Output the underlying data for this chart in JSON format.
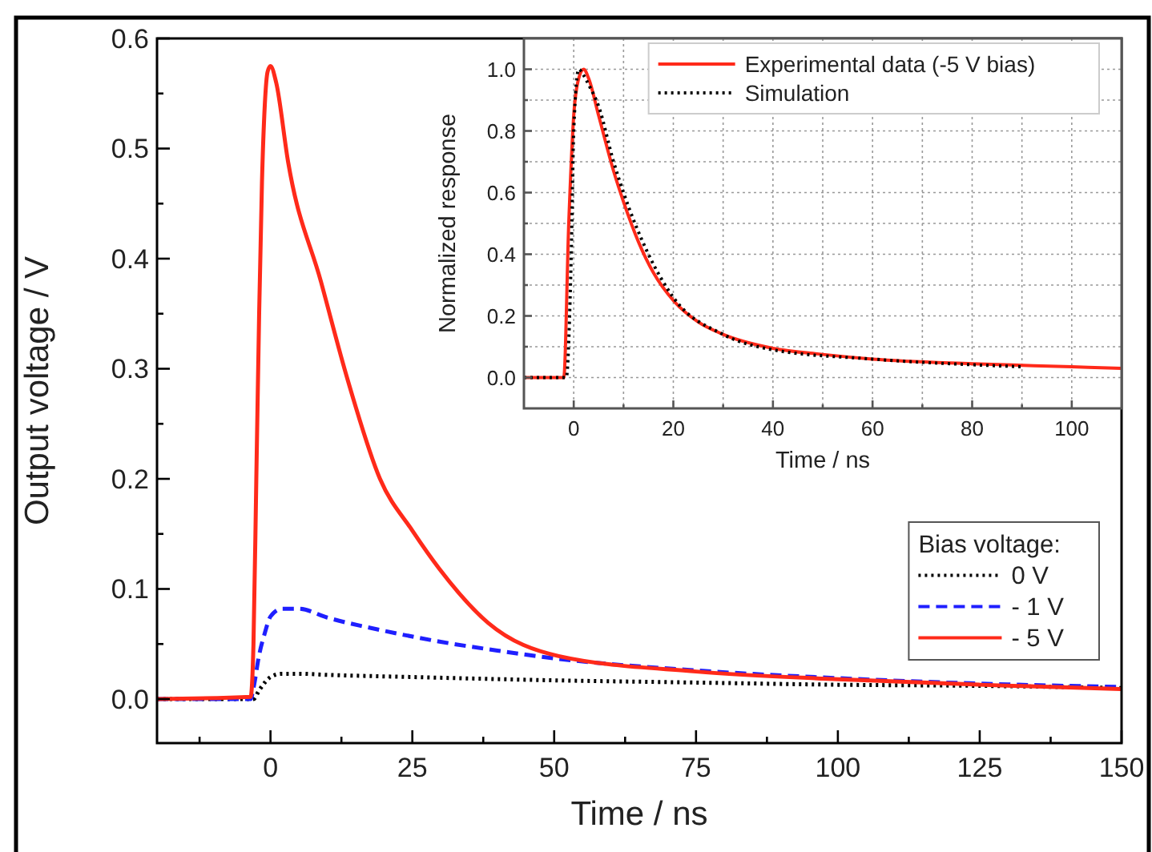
{
  "chart_data": [
    {
      "type": "line",
      "xlabel": "Time / ns",
      "ylabel": "Output voltage / V",
      "legend_title": "Bias voltage:",
      "legend": "bottom right",
      "grid": false,
      "xlim": [
        -20,
        150
      ],
      "ylim": [
        -0.04,
        0.6
      ],
      "xticks": [
        {
          "value": -12.5,
          "label": null
        },
        0,
        {
          "value": 12.5,
          "label": null
        },
        25,
        {
          "value": 37.5,
          "label": null
        },
        50,
        {
          "value": 62.5,
          "label": null
        },
        75,
        {
          "value": 87.5,
          "label": null
        },
        100,
        {
          "value": 112.5,
          "label": null
        },
        125,
        {
          "value": 137.5,
          "label": null
        },
        150
      ],
      "yticks": [
        {
          "value": 0,
          "label": "0.0"
        },
        {
          "value": 0.05,
          "label": null
        },
        0.1,
        {
          "value": 0.15,
          "label": null
        },
        0.2,
        {
          "value": 0.25,
          "label": null
        },
        0.3,
        {
          "value": 0.35,
          "label": null
        },
        0.4,
        {
          "value": 0.45,
          "label": null
        },
        0.5,
        {
          "value": 0.55,
          "label": null
        },
        0.6
      ],
      "series": [
        {
          "name": "0 V",
          "color": "#000000",
          "line_style": "dotted",
          "x": [
            -20,
            -3,
            -2,
            -1,
            0,
            2,
            5,
            10,
            25,
            50,
            75,
            100,
            125,
            150
          ],
          "values": [
            0,
            0,
            0.008,
            0.015,
            0.02,
            0.023,
            0.023,
            0.022,
            0.02,
            0.017,
            0.015,
            0.013,
            0.012,
            0.01
          ]
        },
        {
          "name": "- 1 V",
          "color": "#1f1fff",
          "line_style": "dashed",
          "x": [
            -20,
            -3.5,
            -3,
            -2,
            -1,
            0,
            2,
            5,
            10,
            20,
            30,
            40,
            50,
            75,
            100,
            125,
            150
          ],
          "values": [
            0,
            0,
            0.01,
            0.04,
            0.06,
            0.075,
            0.082,
            0.082,
            0.074,
            0.062,
            0.052,
            0.044,
            0.037,
            0.026,
            0.019,
            0.014,
            0.011
          ]
        },
        {
          "name": "- 5 V",
          "color": "#ff2a1a",
          "line_style": "solid",
          "x": [
            -20,
            -3.5,
            -3,
            -2.5,
            -2,
            -1.5,
            -1,
            -0.5,
            0,
            1,
            3.1,
            8.9,
            13.6,
            19.3,
            25,
            29.8,
            38.4,
            50.8,
            75,
            100,
            125,
            150
          ],
          "values": [
            0,
            0.002,
            0.05,
            0.2,
            0.35,
            0.47,
            0.54,
            0.57,
            0.575,
            0.56,
            0.488,
            0.379,
            0.29,
            0.2,
            0.153,
            0.118,
            0.069,
            0.039,
            0.025,
            0.018,
            0.013,
            0.009
          ]
        }
      ]
    },
    {
      "type": "line",
      "xlabel": "Time / ns",
      "ylabel": "Normalized response",
      "legend": "top right",
      "grid": true,
      "xlim": [
        -10,
        110
      ],
      "ylim": [
        -0.1,
        1.1
      ],
      "xticks": [
        0,
        {
          "value": 10,
          "label": null
        },
        20,
        {
          "value": 30,
          "label": null
        },
        40,
        {
          "value": 50,
          "label": null
        },
        60,
        {
          "value": 70,
          "label": null
        },
        80,
        {
          "value": 90,
          "label": null
        },
        100
      ],
      "yticks": [
        {
          "value": 0,
          "label": "0.0"
        },
        {
          "value": 0.1,
          "label": null
        },
        0.2,
        {
          "value": 0.3,
          "label": null
        },
        0.4,
        {
          "value": 0.5,
          "label": null
        },
        0.6,
        {
          "value": 0.7,
          "label": null
        },
        0.8,
        {
          "value": 0.9,
          "label": null
        },
        {
          "value": 1,
          "label": "1.0"
        }
      ],
      "series": [
        {
          "name": "Experimental data (-5 V bias)",
          "color": "#ff2a1a",
          "line_style": "solid",
          "x": [
            -10,
            -2,
            -1,
            0,
            1,
            2,
            3,
            5,
            8,
            10,
            13,
            16,
            20,
            25,
            30,
            40,
            50,
            60,
            80,
            100,
            110
          ],
          "values": [
            0,
            0,
            0.5,
            0.85,
            0.97,
            1,
            0.97,
            0.85,
            0.67,
            0.57,
            0.44,
            0.34,
            0.25,
            0.18,
            0.14,
            0.095,
            0.075,
            0.06,
            0.045,
            0.035,
            0.03
          ]
        },
        {
          "name": "Simulation",
          "color": "#000000",
          "line_style": "dotted",
          "x": [
            -10,
            -1.5,
            -0.5,
            0,
            1,
            2,
            3,
            5,
            8,
            10,
            15,
            20,
            30,
            40,
            60,
            90
          ],
          "values": [
            0,
            0,
            0.4,
            0.8,
            1,
            0.98,
            0.95,
            0.88,
            0.7,
            0.6,
            0.4,
            0.26,
            0.14,
            0.09,
            0.06,
            0.035
          ]
        }
      ]
    }
  ]
}
